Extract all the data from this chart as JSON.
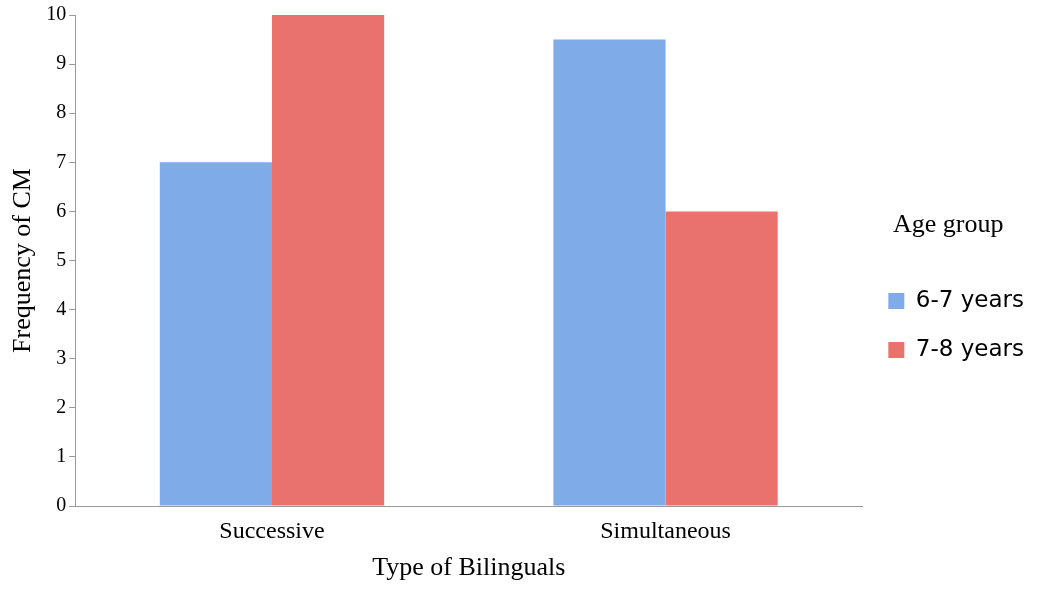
{
  "chart_data": {
    "type": "bar",
    "xlabel": "Type of Bilinguals",
    "ylabel": "Frequency of CM",
    "legend_title": "Age group",
    "categories": [
      "Successive",
      "Simultaneous"
    ],
    "series": [
      {
        "name": "6-7 years",
        "color": "#7fabe8",
        "values": [
          7,
          9.5
        ]
      },
      {
        "name": "7-8 years",
        "color": "#e9736c",
        "values": [
          10,
          6
        ]
      }
    ],
    "ylim": [
      0,
      10
    ],
    "yticks": [
      0,
      1,
      2,
      3,
      4,
      5,
      6,
      7,
      8,
      9,
      10
    ],
    "grid": false,
    "legend": "right"
  }
}
